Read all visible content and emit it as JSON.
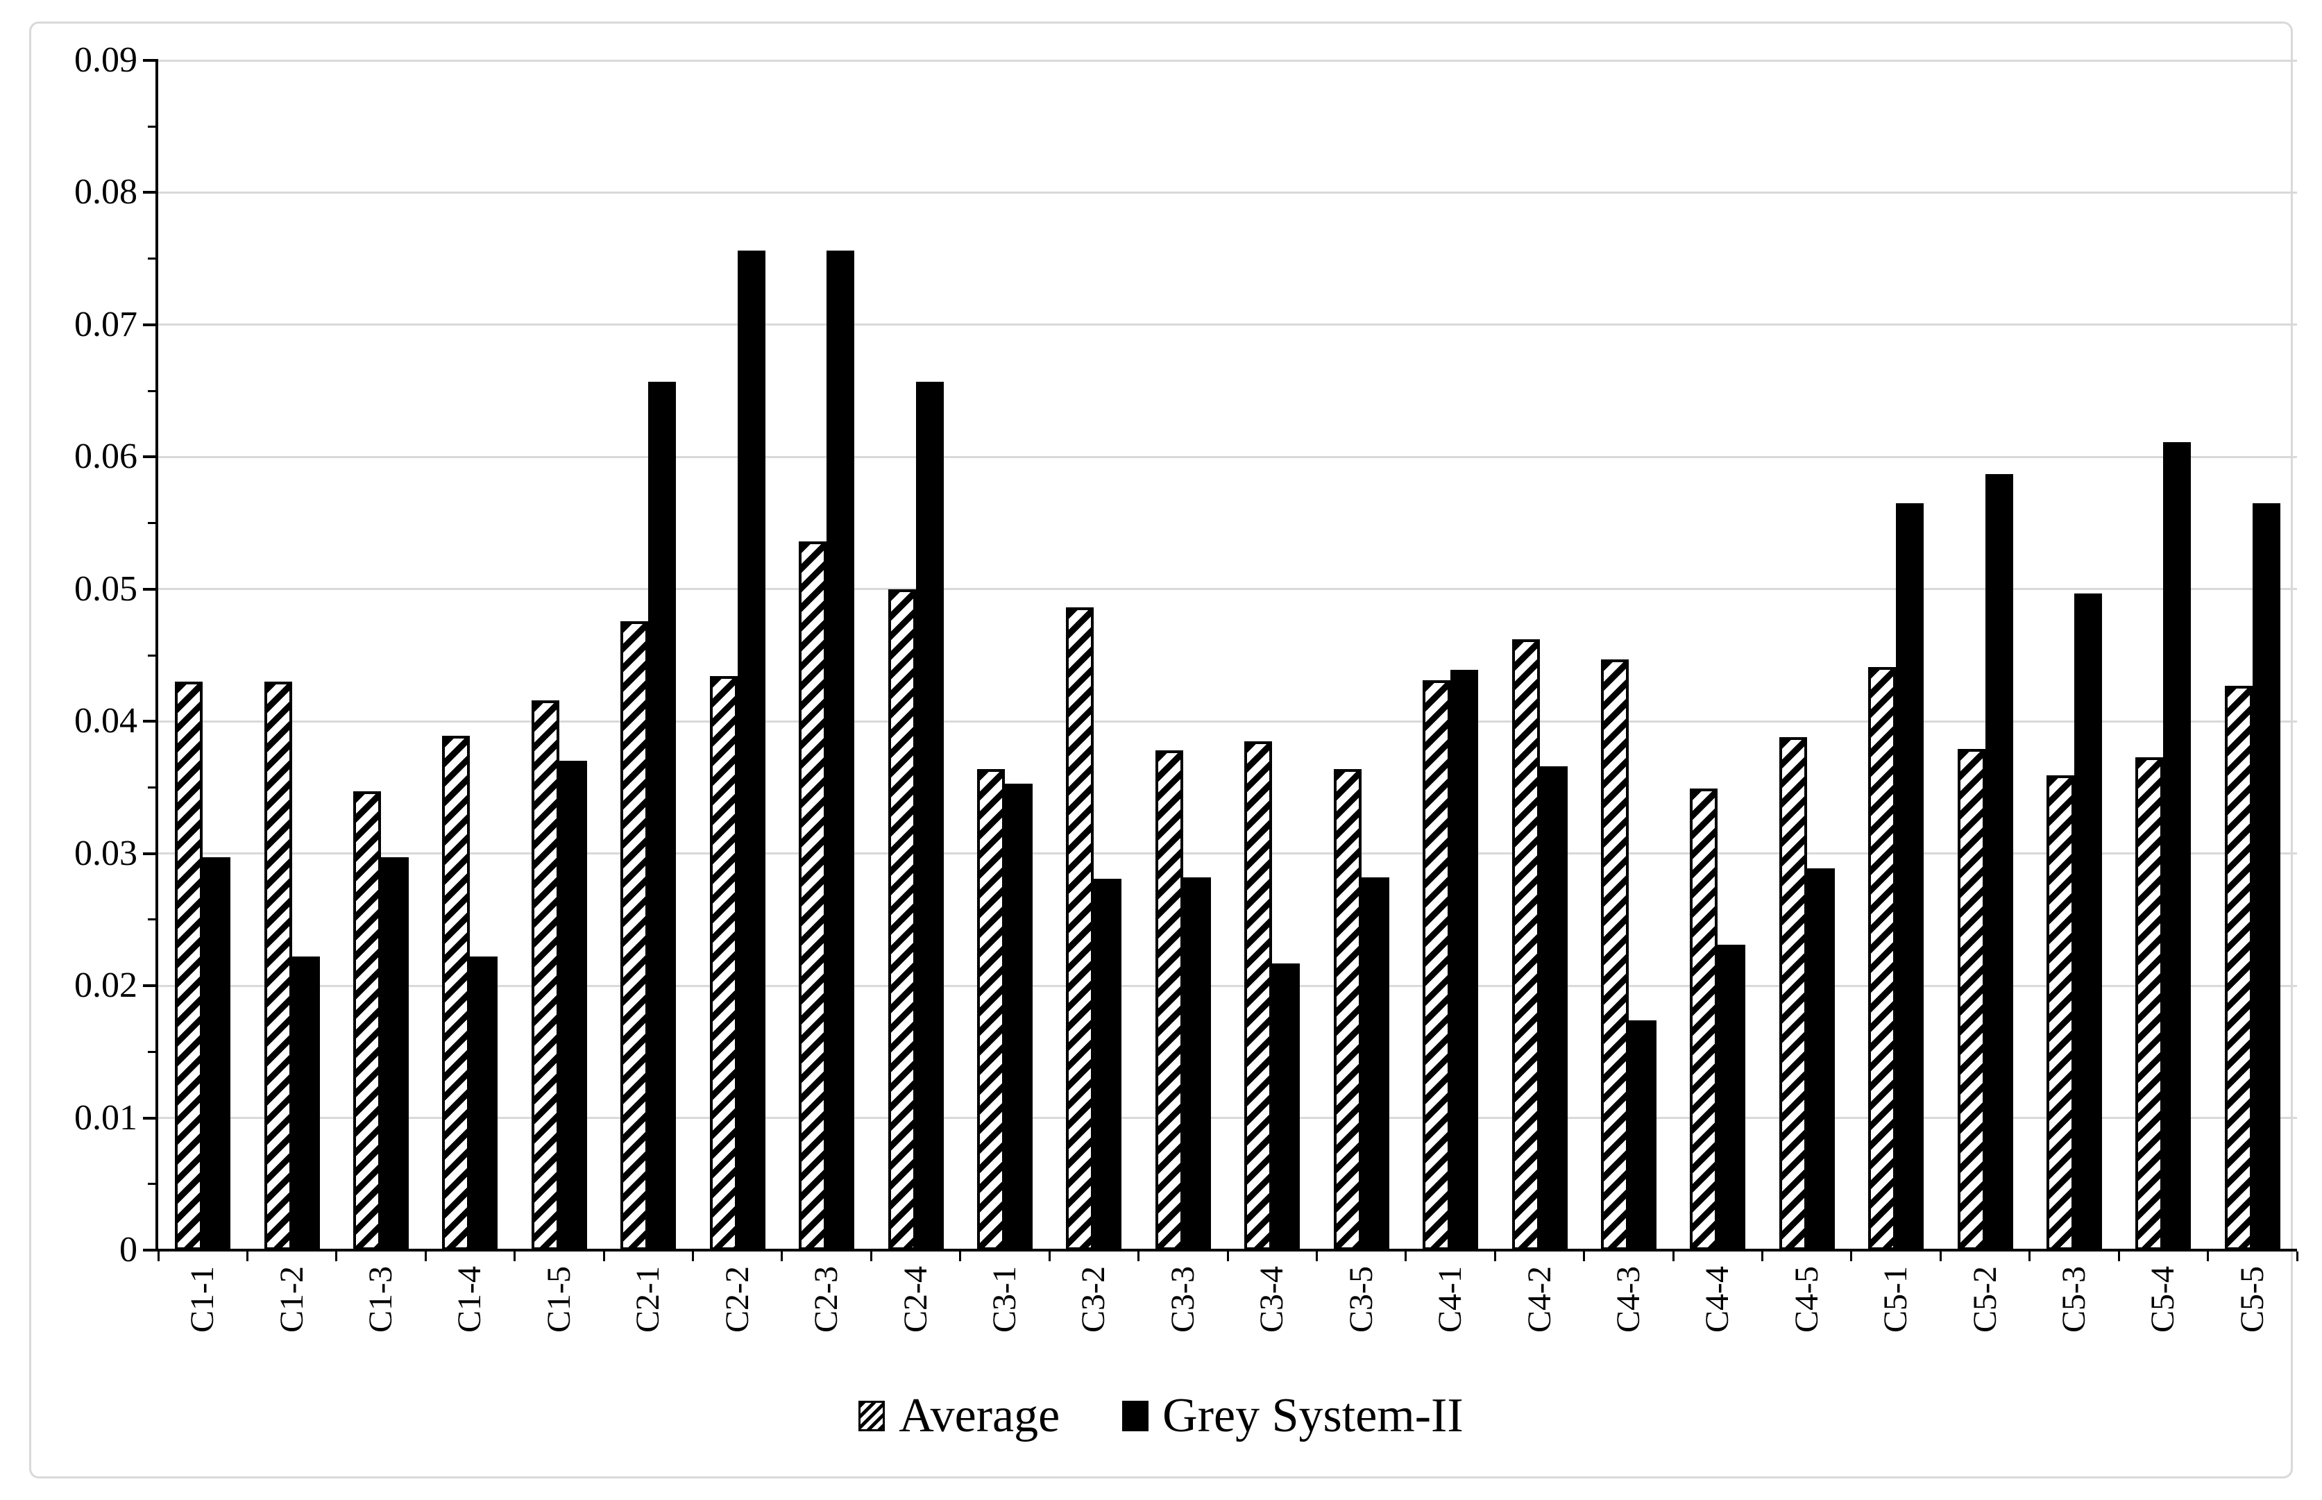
{
  "figure": {
    "background_color": "#ffffff",
    "frame_color": "#d9d9d9",
    "text_color": "#000000"
  },
  "chart_data": {
    "type": "bar",
    "title": "",
    "xlabel": "",
    "ylabel": "",
    "categories": [
      "C1-1",
      "C1-2",
      "C1-3",
      "C1-4",
      "C1-5",
      "C2-1",
      "C2-2",
      "C2-3",
      "C2-4",
      "C3-1",
      "C3-2",
      "C3-3",
      "C3-4",
      "C3-5",
      "C4-1",
      "C4-2",
      "C4-3",
      "C4-4",
      "C4-5",
      "C5-1",
      "C5-2",
      "C5-3",
      "C5-4",
      "C5-5"
    ],
    "series": [
      {
        "name": "Average",
        "style": "hatched",
        "hatch_foreground": "#000000",
        "hatch_background": "#ffffff",
        "values": [
          0.043,
          0.043,
          0.0347,
          0.0389,
          0.0416,
          0.0476,
          0.0434,
          0.0536,
          0.05,
          0.0364,
          0.0486,
          0.0378,
          0.0385,
          0.0364,
          0.0431,
          0.0462,
          0.0447,
          0.0349,
          0.0388,
          0.0441,
          0.0379,
          0.0359,
          0.0373,
          0.0427
        ]
      },
      {
        "name": "Grey System-II",
        "style": "solid",
        "color": "#000000",
        "values": [
          0.0297,
          0.0222,
          0.0297,
          0.0222,
          0.037,
          0.0657,
          0.0756,
          0.0756,
          0.0657,
          0.0353,
          0.0281,
          0.0282,
          0.0217,
          0.0282,
          0.0439,
          0.0366,
          0.0174,
          0.0231,
          0.0289,
          0.0565,
          0.0587,
          0.0497,
          0.0611,
          0.0565
        ]
      }
    ],
    "ylim": [
      0,
      0.09
    ],
    "ytick_step": 0.01,
    "ytick_minor_step": 0.005,
    "ytick_labels": [
      "0",
      "0.01",
      "0.02",
      "0.03",
      "0.04",
      "0.05",
      "0.06",
      "0.07",
      "0.08",
      "0.09"
    ],
    "grid": true,
    "gridline_color": "#d9d9d9",
    "legend_position": "bottom-center"
  }
}
